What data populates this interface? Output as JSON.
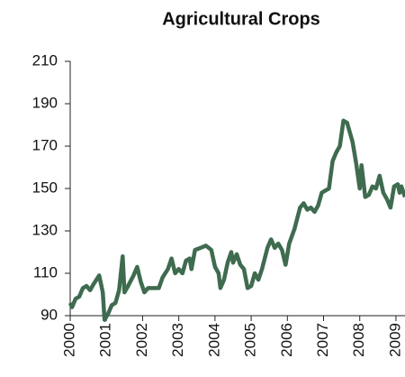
{
  "chart_data": {
    "type": "line",
    "title": "Agricultural Crops",
    "x": [
      2000.0,
      2000.05,
      2000.15,
      2000.25,
      2000.35,
      2000.45,
      2000.55,
      2000.65,
      2000.8,
      2000.9,
      2000.95,
      2001.05,
      2001.15,
      2001.25,
      2001.35,
      2001.45,
      2001.5,
      2001.6,
      2001.75,
      2001.85,
      2001.95,
      2002.05,
      2002.15,
      2002.3,
      2002.45,
      2002.55,
      2002.7,
      2002.8,
      2002.9,
      2003.0,
      2003.1,
      2003.2,
      2003.3,
      2003.35,
      2003.45,
      2003.6,
      2003.75,
      2003.9,
      2004.0,
      2004.1,
      2004.15,
      2004.25,
      2004.35,
      2004.45,
      2004.5,
      2004.6,
      2004.7,
      2004.8,
      2004.9,
      2005.0,
      2005.1,
      2005.2,
      2005.3,
      2005.45,
      2005.55,
      2005.65,
      2005.75,
      2005.85,
      2005.95,
      2006.05,
      2006.2,
      2006.35,
      2006.45,
      2006.55,
      2006.65,
      2006.75,
      2006.85,
      2006.95,
      2007.05,
      2007.15,
      2007.25,
      2007.35,
      2007.45,
      2007.55,
      2007.65,
      2007.75,
      2007.8,
      2007.9,
      2008.0,
      2008.05,
      2008.15,
      2008.25,
      2008.35,
      2008.45,
      2008.55,
      2008.65,
      2008.75,
      2008.85,
      2008.95,
      2009.05,
      2009.1,
      2009.15,
      2009.25
    ],
    "series": [
      {
        "color": "#3f6b4f",
        "values": [
          96,
          94,
          98,
          99,
          103,
          104,
          102,
          105,
          109,
          101,
          88,
          91,
          95,
          96,
          102,
          118,
          101,
          104,
          109,
          113,
          106,
          101,
          103,
          103,
          103,
          108,
          112,
          117,
          110,
          112,
          110,
          116,
          117,
          112,
          121,
          122,
          123,
          121,
          113,
          110,
          103,
          107,
          115,
          120,
          115,
          119,
          114,
          112,
          103,
          104,
          110,
          107,
          112,
          122,
          126,
          122,
          124,
          121,
          114,
          124,
          131,
          141,
          143,
          140,
          141,
          139,
          142,
          148,
          149,
          150,
          163,
          167,
          170,
          182,
          181,
          175,
          172,
          162,
          150,
          161,
          146,
          147,
          151,
          150,
          156,
          148,
          145,
          141,
          151,
          152,
          148,
          151,
          146
        ]
      }
    ],
    "xlim": [
      2000,
      2009.25
    ],
    "xticks": [
      2000,
      2001,
      2002,
      2003,
      2004,
      2005,
      2006,
      2007,
      2008,
      2009
    ],
    "ylim": [
      90,
      210
    ],
    "yticks": [
      90,
      110,
      130,
      150,
      170,
      190,
      210
    ]
  }
}
